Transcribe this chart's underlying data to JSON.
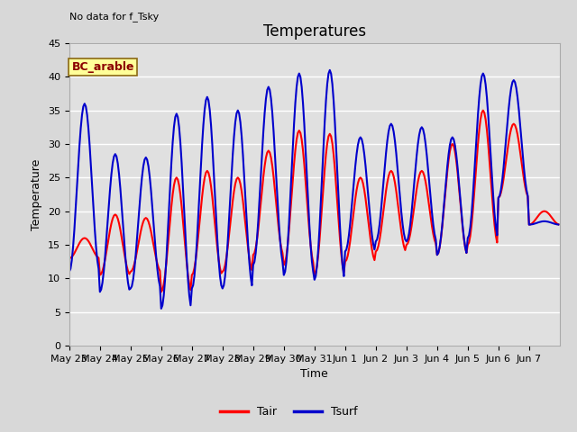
{
  "title": "Temperatures",
  "xlabel": "Time",
  "ylabel": "Temperature",
  "annotation": "No data for f_Tsky",
  "box_label": "BC_arable",
  "ylim": [
    0,
    45
  ],
  "yticks": [
    0,
    5,
    10,
    15,
    20,
    25,
    30,
    35,
    40,
    45
  ],
  "xtick_labels": [
    "May 23",
    "May 24",
    "May 25",
    "May 26",
    "May 27",
    "May 28",
    "May 29",
    "May 30",
    "May 31",
    "Jun 1",
    "Jun 2",
    "Jun 3",
    "Jun 4",
    "Jun 5",
    "Jun 6",
    "Jun 7"
  ],
  "line_color_tair": "#ff0000",
  "line_color_tsurf": "#0000cc",
  "line_width": 1.5,
  "fig_bg_color": "#d8d8d8",
  "plot_bg_color": "#e0e0e0",
  "legend_tair": "Tair",
  "legend_tsurf": "Tsurf",
  "title_fontsize": 12,
  "label_fontsize": 9,
  "tick_fontsize": 8,
  "tsurf_maxes": [
    36,
    28.5,
    28,
    34.5,
    37,
    35,
    38.5,
    40.5,
    41,
    31,
    33,
    32.5,
    31,
    40.5,
    39.5,
    18.5
  ],
  "tsurf_mins": [
    11,
    8,
    8.5,
    5.5,
    8.5,
    8.5,
    12,
    10.5,
    9.8,
    14,
    15.5,
    15.5,
    13.5,
    16,
    22,
    18
  ],
  "tair_maxes": [
    16,
    19.5,
    19,
    25,
    26,
    25,
    29,
    32,
    31.5,
    25,
    26,
    26,
    30,
    35,
    33,
    20
  ],
  "tair_mins": [
    13,
    10.5,
    11,
    8,
    10.5,
    11,
    13.5,
    12,
    10.5,
    12.5,
    14,
    15,
    13.5,
    15,
    22,
    18
  ]
}
